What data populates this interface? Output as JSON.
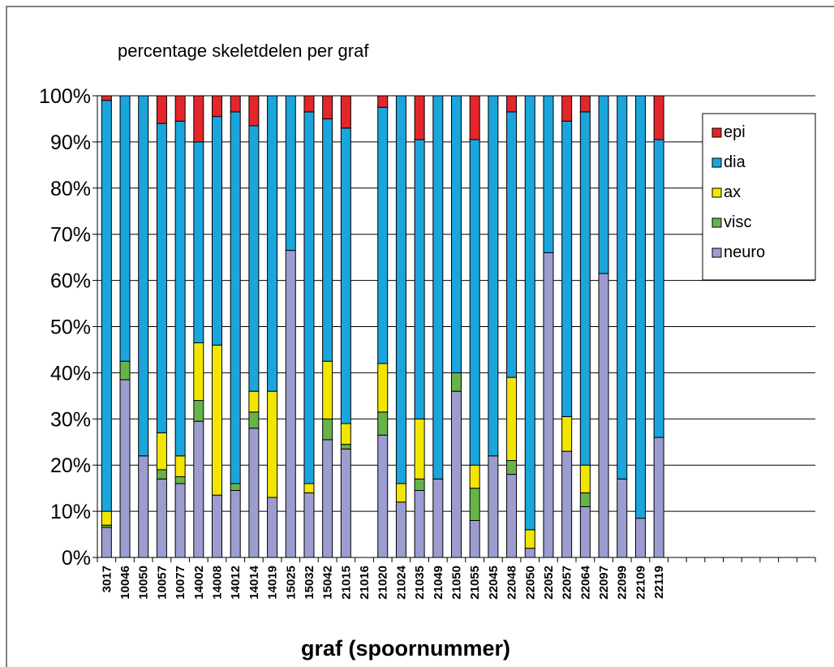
{
  "chart_data": {
    "type": "bar",
    "stacked": true,
    "title": "percentage skeletdelen per graf",
    "x_label": "graf (spoornummer)",
    "categories": [
      "3017",
      "10046",
      "10050",
      "10057",
      "10077",
      "14002",
      "14008",
      "14012",
      "14014",
      "14019",
      "15025",
      "15032",
      "15042",
      "21015",
      "21016",
      "21020",
      "21024",
      "21035",
      "21049",
      "21050",
      "21055",
      "22045",
      "22048",
      "22050",
      "22052",
      "22057",
      "22064",
      "22097",
      "22099",
      "22109",
      "22119",
      null,
      null,
      null,
      null,
      null,
      null,
      null,
      null
    ],
    "series": [
      {
        "name": "neuro",
        "color": "#9d9ccf",
        "values": [
          6.5,
          38.5,
          22,
          17,
          16,
          29.5,
          13.5,
          14.5,
          28,
          13,
          66.5,
          14,
          25.5,
          23.5,
          null,
          26.5,
          12,
          14.5,
          17,
          36,
          8,
          22,
          18,
          2,
          66,
          23,
          11,
          61.5,
          17,
          8.5,
          26,
          null,
          null,
          null,
          null,
          null,
          null,
          null,
          null
        ]
      },
      {
        "name": "visc",
        "color": "#66b34a",
        "values": [
          0.5,
          4,
          0,
          2,
          1.5,
          4.5,
          0,
          1.5,
          3.5,
          0,
          0,
          0,
          4.5,
          1,
          null,
          5,
          0,
          2.5,
          0,
          4,
          7,
          0,
          3,
          0,
          0,
          0,
          3,
          0,
          0,
          0,
          0,
          null,
          null,
          null,
          null,
          null,
          null,
          null,
          null
        ]
      },
      {
        "name": "ax",
        "color": "#f2e600",
        "values": [
          3,
          0,
          0,
          8,
          4.5,
          12.5,
          32.5,
          0,
          4.5,
          23,
          0,
          2,
          12.5,
          4.5,
          null,
          10.5,
          4,
          13,
          0,
          0,
          5,
          0,
          18,
          4,
          0,
          7.5,
          6,
          0,
          0,
          0,
          0,
          null,
          null,
          null,
          null,
          null,
          null,
          null,
          null
        ]
      },
      {
        "name": "dia",
        "color": "#1aa5dc",
        "values": [
          89,
          57.5,
          78,
          67,
          72.5,
          43.5,
          49.5,
          80.5,
          57.5,
          64,
          33.5,
          80.5,
          52.5,
          64,
          null,
          55.5,
          84,
          60.5,
          83,
          60,
          70.5,
          78,
          57.5,
          94,
          34,
          64,
          76.5,
          38.5,
          83,
          91.5,
          64.5,
          null,
          null,
          null,
          null,
          null,
          null,
          null,
          null
        ]
      },
      {
        "name": "epi",
        "color": "#e3262a",
        "values": [
          1,
          0,
          0,
          6,
          5.5,
          10,
          4.5,
          3.5,
          6.5,
          0,
          0,
          3.5,
          5,
          7,
          null,
          2.5,
          0,
          9.5,
          0,
          0,
          9.5,
          0,
          3.5,
          0,
          0,
          5.5,
          3.5,
          0,
          0,
          0,
          9.5,
          null,
          null,
          null,
          null,
          null,
          null,
          null,
          null
        ]
      }
    ],
    "ylim": [
      0,
      100
    ],
    "yticks": [
      {
        "value": 0,
        "label": "0%"
      },
      {
        "value": 10,
        "label": "10%"
      },
      {
        "value": 20,
        "label": "20%"
      },
      {
        "value": 30,
        "label": "30%"
      },
      {
        "value": 40,
        "label": "40%"
      },
      {
        "value": 50,
        "label": "50%"
      },
      {
        "value": 60,
        "label": "60%"
      },
      {
        "value": 70,
        "label": "70%"
      },
      {
        "value": 80,
        "label": "80%"
      },
      {
        "value": 90,
        "label": "90%"
      },
      {
        "value": 100,
        "label": "100%"
      }
    ],
    "grid": true,
    "legend": "upper right"
  }
}
